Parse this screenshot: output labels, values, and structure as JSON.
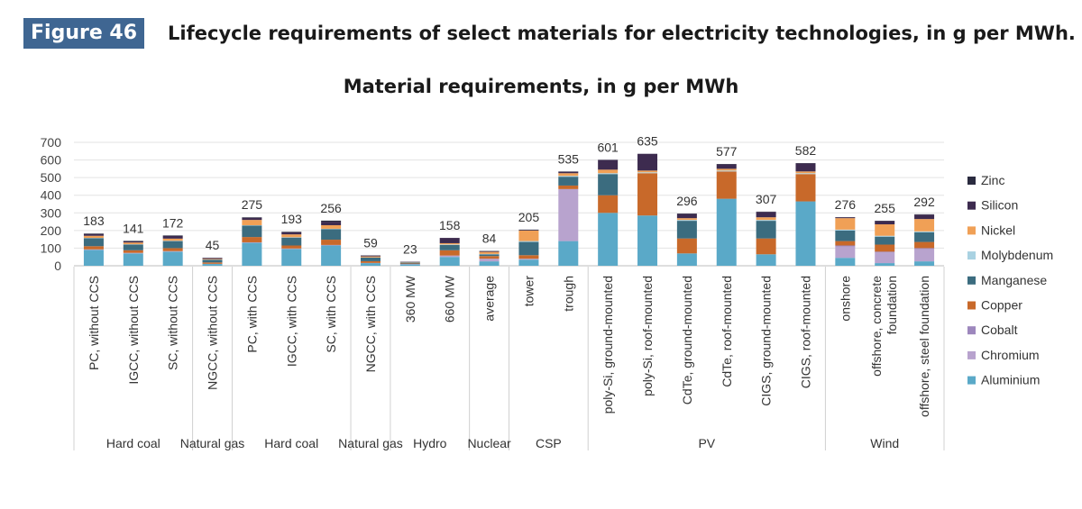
{
  "figure": {
    "badge": "Figure 46",
    "title": "Lifecycle requirements of select materials for electricity technologies, in g per MWh."
  },
  "chart_data": {
    "type": "bar",
    "stacked": true,
    "title": "Material requirements, in g per MWh",
    "xlabel": "",
    "ylabel": "",
    "ylim": [
      0,
      700
    ],
    "yticks": [
      0,
      100,
      200,
      300,
      400,
      500,
      600,
      700
    ],
    "grid": true,
    "legend_position": "right",
    "categories": [
      [
        "PC, without CCS"
      ],
      [
        "IGCC, without CCS"
      ],
      [
        "SC, without CCS"
      ],
      [
        "NGCC, without CCS"
      ],
      [
        "PC, with CCS"
      ],
      [
        "IGCC, with CCS"
      ],
      [
        "SC, with CCS"
      ],
      [
        "NGCC, with CCS"
      ],
      [
        "360 MW"
      ],
      [
        "660 MW"
      ],
      [
        "average"
      ],
      [
        "tower"
      ],
      [
        "trough"
      ],
      [
        "poly-Si, ground-mounted"
      ],
      [
        "poly-Si, roof-mounted"
      ],
      [
        "CdTe, ground-mounted"
      ],
      [
        "CdTe, roof-mounted"
      ],
      [
        "CIGS, ground-mounted"
      ],
      [
        "CIGS, roof-mounted"
      ],
      [
        "onshore"
      ],
      [
        "offshore, concrete",
        "foundation"
      ],
      [
        "offshore, steel foundation"
      ]
    ],
    "groups": [
      {
        "label": "Hard coal",
        "start": 0,
        "end": 2
      },
      {
        "label": "Natural gas",
        "start": 3,
        "end": 3
      },
      {
        "label": "Hard coal",
        "start": 4,
        "end": 6
      },
      {
        "label": "Natural gas",
        "start": 7,
        "end": 7
      },
      {
        "label": "Hydro",
        "start": 8,
        "end": 9
      },
      {
        "label": "Nuclear",
        "start": 10,
        "end": 10
      },
      {
        "label": "CSP",
        "start": 11,
        "end": 12
      },
      {
        "label": "PV",
        "start": 13,
        "end": 18
      },
      {
        "label": "Wind",
        "start": 19,
        "end": 21
      }
    ],
    "totals": [
      "183",
      "141",
      "172",
      "45",
      "275",
      "193",
      "256",
      "59",
      "23",
      "158",
      "84",
      "205",
      "535",
      "601",
      "635",
      "296",
      "577",
      "307",
      "582",
      "276",
      "255",
      "292"
    ],
    "series": [
      {
        "name": "Aluminium",
        "color": "#5aa9c8",
        "values": [
          90,
          70,
          80,
          10,
          130,
          95,
          115,
          15,
          8,
          50,
          25,
          35,
          140,
          300,
          285,
          70,
          380,
          65,
          365,
          45,
          15,
          25
        ]
      },
      {
        "name": "Chromium",
        "color": "#b8a3ce",
        "values": [
          3,
          3,
          3,
          1,
          3,
          3,
          3,
          1,
          2,
          8,
          15,
          5,
          295,
          0,
          0,
          0,
          0,
          0,
          0,
          65,
          60,
          70
        ]
      },
      {
        "name": "Cobalt",
        "color": "#9d87bd",
        "values": [
          0,
          0,
          0,
          0,
          0,
          0,
          0,
          0,
          0,
          0,
          0,
          0,
          0,
          0,
          0,
          0,
          0,
          0,
          0,
          5,
          5,
          5
        ]
      },
      {
        "name": "Copper",
        "color": "#c8692a",
        "values": [
          18,
          15,
          17,
          8,
          30,
          17,
          30,
          10,
          3,
          30,
          15,
          20,
          20,
          100,
          240,
          85,
          155,
          90,
          155,
          25,
          40,
          35
        ]
      },
      {
        "name": "Manganese",
        "color": "#3b6c7f",
        "values": [
          45,
          32,
          40,
          15,
          65,
          45,
          60,
          20,
          5,
          30,
          10,
          75,
          50,
          120,
          0,
          100,
          0,
          100,
          0,
          60,
          45,
          55
        ]
      },
      {
        "name": "Molybdenum",
        "color": "#a9d2e2",
        "values": [
          2,
          2,
          2,
          1,
          2,
          2,
          2,
          1,
          1,
          3,
          2,
          5,
          5,
          5,
          5,
          5,
          5,
          5,
          5,
          5,
          5,
          5
        ]
      },
      {
        "name": "Nickel",
        "color": "#f0a056",
        "values": [
          12,
          10,
          12,
          4,
          30,
          16,
          20,
          6,
          2,
          7,
          12,
          60,
          15,
          20,
          10,
          10,
          10,
          15,
          10,
          65,
          65,
          70
        ]
      },
      {
        "name": "Silicon",
        "color": "#3d2b4f",
        "values": [
          10,
          6,
          15,
          5,
          12,
          12,
          20,
          5,
          2,
          30,
          3,
          2,
          8,
          55,
          95,
          24,
          25,
          30,
          45,
          5,
          18,
          25
        ]
      },
      {
        "name": "Zinc",
        "color": "#2a2b3f",
        "values": [
          3,
          3,
          3,
          1,
          3,
          3,
          6,
          1,
          0,
          0,
          2,
          3,
          2,
          1,
          0,
          2,
          2,
          2,
          2,
          1,
          2,
          2
        ]
      }
    ]
  }
}
